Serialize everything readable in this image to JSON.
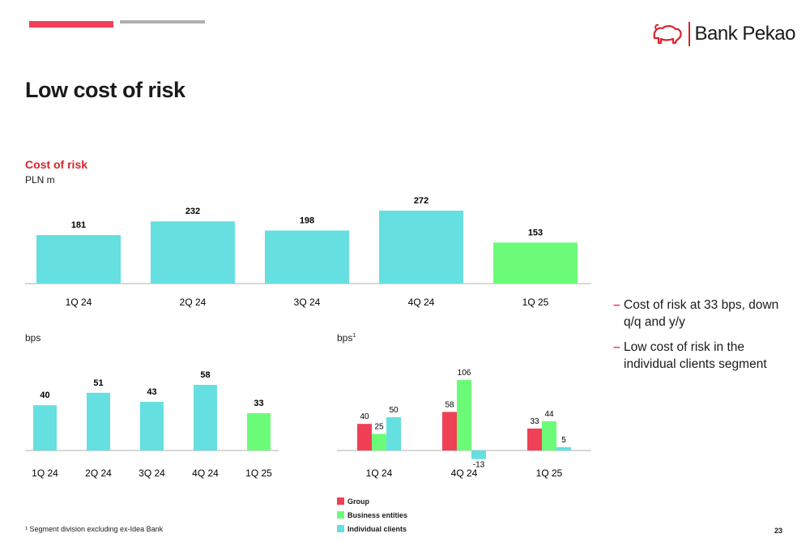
{
  "header": {
    "brand": "Bank Pekao",
    "title": "Low cost of risk"
  },
  "colors": {
    "accent": "#ef4056",
    "brand_red": "#d9232d",
    "cyan": "#66dfe0",
    "green": "#6cfb79",
    "grey": "#b0b0b0"
  },
  "top_chart": {
    "title": "Cost of risk",
    "unit": "PLN m"
  },
  "bottom_left": {
    "unit": "bps"
  },
  "bottom_right": {
    "unit": "bps",
    "unit_sup": "1"
  },
  "bullets": [
    "Cost of risk at 33 bps, down q/q and y/y",
    "Low cost of risk in the individual clients segment"
  ],
  "legend": [
    "Group",
    "Business entities",
    "Individual clients"
  ],
  "footnote": "¹ Segment division excluding ex-Idea Bank",
  "page_number": "23",
  "chart_data": [
    {
      "type": "bar",
      "title": "Cost of risk",
      "ylabel": "PLN m",
      "categories": [
        "1Q 24",
        "2Q 24",
        "3Q 24",
        "4Q 24",
        "1Q 25"
      ],
      "values": [
        181,
        232,
        198,
        272,
        153
      ],
      "highlight_last": true
    },
    {
      "type": "bar",
      "ylabel": "bps",
      "categories": [
        "1Q 24",
        "2Q 24",
        "3Q 24",
        "4Q 24",
        "1Q 25"
      ],
      "values": [
        40,
        51,
        43,
        58,
        33
      ],
      "highlight_last": true
    },
    {
      "type": "bar",
      "ylabel": "bps¹",
      "categories": [
        "1Q 24",
        "4Q 24",
        "1Q 25"
      ],
      "series": [
        {
          "name": "Group",
          "values": [
            40,
            58,
            33
          ],
          "color": "#ef4056"
        },
        {
          "name": "Business entities",
          "values": [
            25,
            106,
            44
          ],
          "color": "#6cfb79"
        },
        {
          "name": "Individual clients",
          "values": [
            50,
            -13,
            5
          ],
          "color": "#66dfe0"
        }
      ]
    }
  ]
}
